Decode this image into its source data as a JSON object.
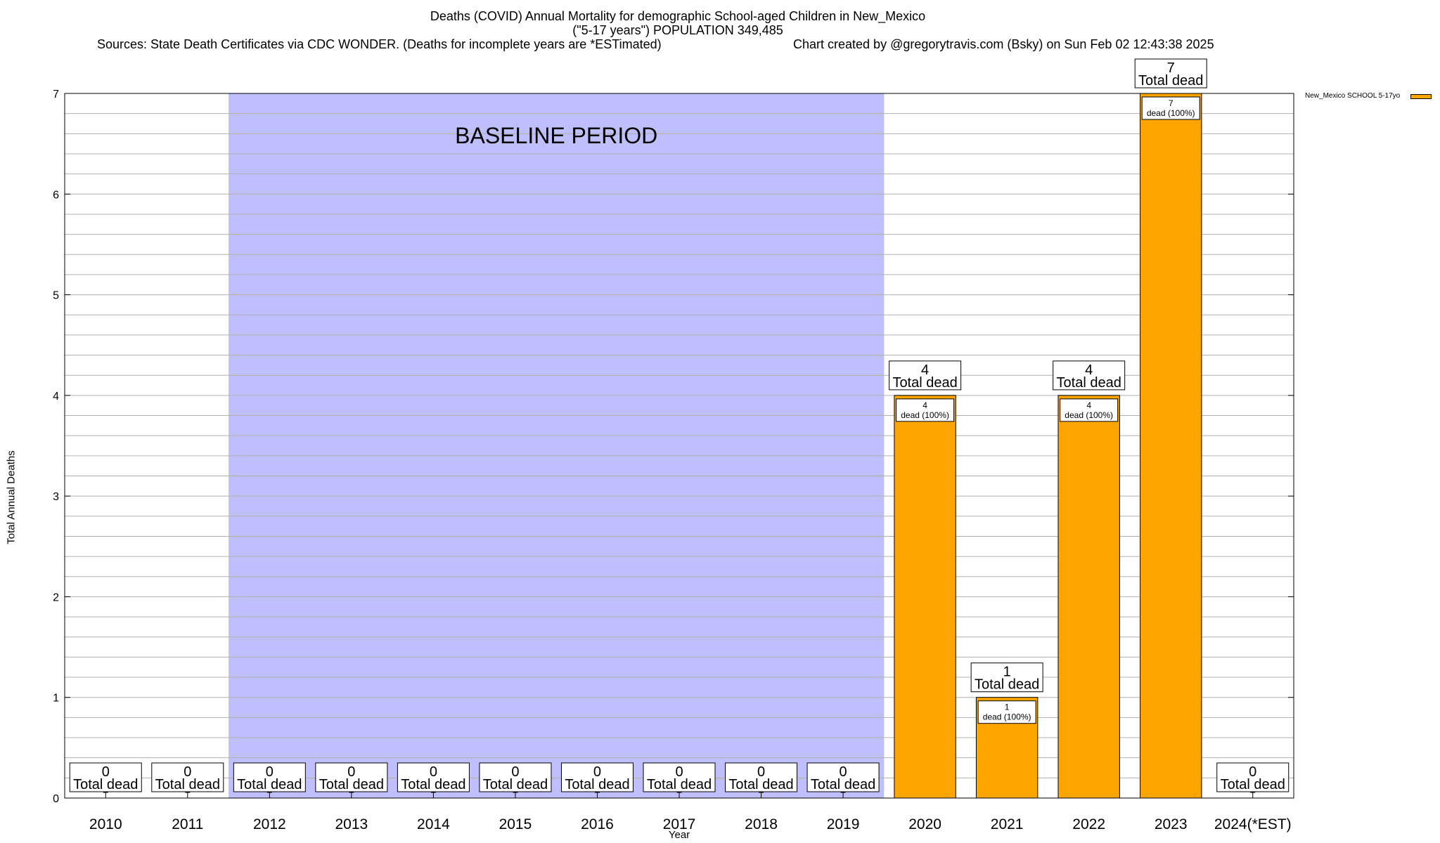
{
  "header": {
    "title_line1": "Deaths (COVID) Annual Mortality for demographic School-aged Children in New_Mexico",
    "title_line2": "(\"5-17 years\") POPULATION 349,485",
    "sources": "Sources: State Death Certificates via CDC WONDER. (Deaths for incomplete years are *ESTimated)",
    "credit": "Chart created by @gregorytravis.com (Bsky) on Sun Feb 02 12:43:38 2025"
  },
  "colors": {
    "bar": "#ffa500",
    "baseline_shade": "#bfbffd",
    "grid": "#b0b0b0"
  },
  "chart_data": {
    "type": "bar",
    "title": "Deaths (COVID) Annual Mortality for demographic School-aged Children in New_Mexico",
    "subtitle": "(\"5-17 years\") POPULATION 349,485",
    "xlabel": "Year",
    "ylabel": "Total Annual Deaths",
    "ylim": [
      0,
      7
    ],
    "yticks": [
      0,
      1,
      2,
      3,
      4,
      5,
      6,
      7
    ],
    "grid": true,
    "legend_position": "top-right",
    "categories": [
      "2010",
      "2011",
      "2012",
      "2013",
      "2014",
      "2015",
      "2016",
      "2017",
      "2018",
      "2019",
      "2020",
      "2021",
      "2022",
      "2023",
      "2024(*EST)"
    ],
    "series": [
      {
        "name": "New_Mexico SCHOOL 5-17yo",
        "values": [
          0,
          0,
          0,
          0,
          0,
          0,
          0,
          0,
          0,
          0,
          4,
          1,
          4,
          7,
          0
        ]
      }
    ],
    "total_label": "Total dead",
    "segment_label": "dead (100%)",
    "baseline": {
      "label": "BASELINE PERIOD",
      "from": "2012",
      "to": "2019"
    }
  }
}
